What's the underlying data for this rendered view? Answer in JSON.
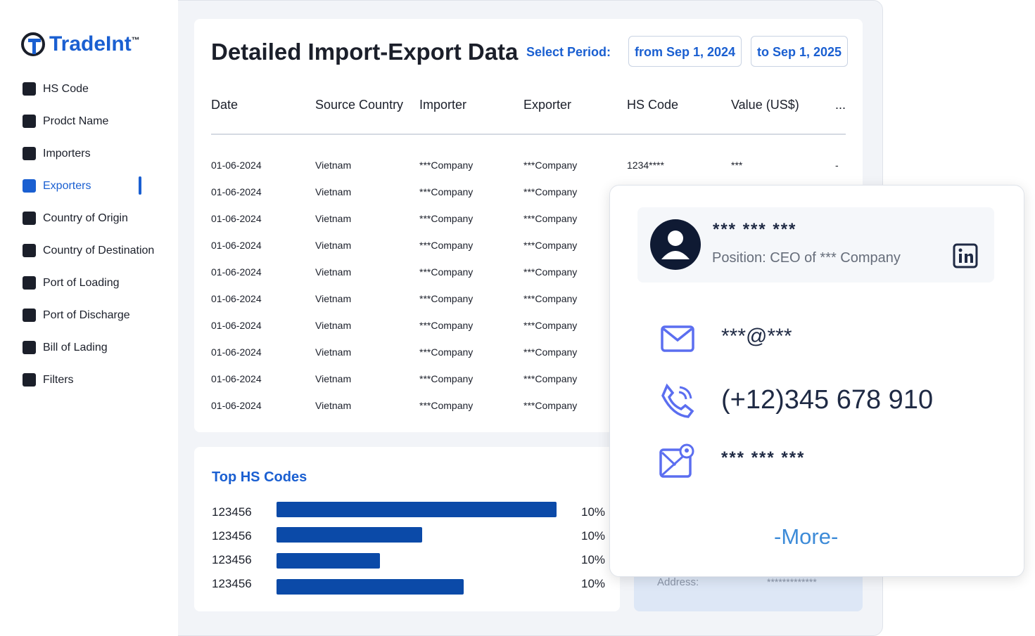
{
  "logo": {
    "name": "TradeInt",
    "trademark": "™"
  },
  "sidebar": {
    "items": [
      "HS Code",
      "Prodct Name",
      "Importers",
      "Exporters",
      "Country of Origin",
      "Country of Destination",
      "Port of Loading",
      "Port of Discharge",
      "Bill of Lading",
      "Filters"
    ],
    "active": 3
  },
  "header": {
    "title": "Detailed Import-Export Data",
    "period_label": "Select Period:",
    "from": "from Sep 1, 2024",
    "to": "to Sep 1, 2025"
  },
  "table": {
    "columns": [
      "Date",
      "Source Country",
      "Importer",
      "Exporter",
      "HS Code",
      "Value (US$)",
      "..."
    ],
    "rows": [
      [
        "01-06-2024",
        "Vietnam",
        "***Company",
        "***Company",
        "1234****",
        "***",
        "-"
      ],
      [
        "01-06-2024",
        "Vietnam",
        "***Company",
        "***Company"
      ],
      [
        "01-06-2024",
        "Vietnam",
        "***Company",
        "***Company"
      ],
      [
        "01-06-2024",
        "Vietnam",
        "***Company",
        "***Company"
      ],
      [
        "01-06-2024",
        "Vietnam",
        "***Company",
        "***Company"
      ],
      [
        "01-06-2024",
        "Vietnam",
        "***Company",
        "***Company"
      ],
      [
        "01-06-2024",
        "Vietnam",
        "***Company",
        "***Company"
      ],
      [
        "01-06-2024",
        "Vietnam",
        "***Company",
        "***Company"
      ],
      [
        "01-06-2024",
        "Vietnam",
        "***Company",
        "***Company"
      ],
      [
        "01-06-2024",
        "Vietnam",
        "***Company",
        "***Company"
      ]
    ]
  },
  "top_hs": {
    "title": "Top HS Codes",
    "codes": [
      "123456",
      "123456",
      "123456",
      "123456"
    ],
    "shares": [
      "10%",
      "10%",
      "10%",
      "10%"
    ]
  },
  "address_card": {
    "label": "Address:",
    "value": "*************"
  },
  "contact": {
    "name": "*** *** ***",
    "position": "Position: CEO of *** Company",
    "email": "***@***",
    "phone": "(+12)345 678 910",
    "address": "*** *** ***",
    "more": "-More-"
  }
}
